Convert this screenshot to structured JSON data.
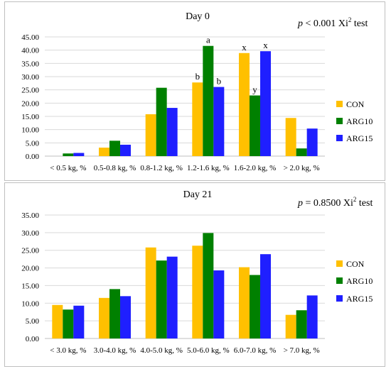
{
  "chart_data": [
    {
      "type": "bar",
      "title": "Day 0",
      "stat_note": {
        "p_symbol": "p",
        "p_text": " < 0.001 Xi",
        "sup": "2",
        "suffix": " test"
      },
      "categories": [
        "< 0.5 kg, %",
        "0.5-0.8 kg, %",
        "0.8-1.2 kg, %",
        "1.2-1.6 kg, %",
        "1.6-2.0 kg, %",
        "> 2.0 kg, %"
      ],
      "series": [
        {
          "name": "CON",
          "color": "#FFC000",
          "values": [
            0.0,
            3.2,
            15.8,
            27.8,
            38.9,
            14.4
          ]
        },
        {
          "name": "ARG10",
          "color": "#008000",
          "values": [
            1.0,
            5.8,
            25.8,
            41.6,
            22.9,
            2.9
          ]
        },
        {
          "name": "ARG15",
          "color": "#1F1FFF",
          "values": [
            1.2,
            4.3,
            18.2,
            26.1,
            39.6,
            10.4
          ]
        }
      ],
      "annotations": [
        {
          "category": 3,
          "series": 0,
          "text": "b"
        },
        {
          "category": 3,
          "series": 1,
          "text": "a"
        },
        {
          "category": 3,
          "series": 2,
          "text": "b"
        },
        {
          "category": 4,
          "series": 0,
          "text": "x"
        },
        {
          "category": 4,
          "series": 1,
          "text": "y"
        },
        {
          "category": 4,
          "series": 2,
          "text": "x"
        }
      ],
      "ylim": [
        0,
        45
      ],
      "yticks": [
        "0.00",
        "5.00",
        "10.00",
        "15.00",
        "20.00",
        "25.00",
        "30.00",
        "35.00",
        "40.00",
        "45.00"
      ],
      "grid": true,
      "legend": "right"
    },
    {
      "type": "bar",
      "title": "Day 21",
      "stat_note": {
        "p_symbol": "p",
        "p_text": " = 0.8500 Xi",
        "sup": "2",
        "suffix": " test"
      },
      "categories": [
        "< 3.0 kg, %",
        "3.0-4.0 kg, %",
        "4.0-5.0 kg, %",
        "5.0-6.0 kg, %",
        "6.0-7.0 kg, %",
        "> 7.0 kg, %"
      ],
      "series": [
        {
          "name": "CON",
          "color": "#FFC000",
          "values": [
            9.5,
            11.5,
            25.8,
            26.3,
            20.2,
            6.7
          ]
        },
        {
          "name": "ARG10",
          "color": "#008000",
          "values": [
            8.2,
            14.0,
            22.1,
            29.9,
            18.0,
            8.0
          ]
        },
        {
          "name": "ARG15",
          "color": "#1F1FFF",
          "values": [
            9.3,
            12.0,
            23.2,
            19.3,
            23.9,
            12.2
          ]
        }
      ],
      "annotations": [],
      "ylim": [
        0,
        35
      ],
      "yticks": [
        "0.00",
        "5.00",
        "10.00",
        "15.00",
        "20.00",
        "25.00",
        "30.00",
        "35.00"
      ],
      "grid": true,
      "legend": "right"
    }
  ]
}
